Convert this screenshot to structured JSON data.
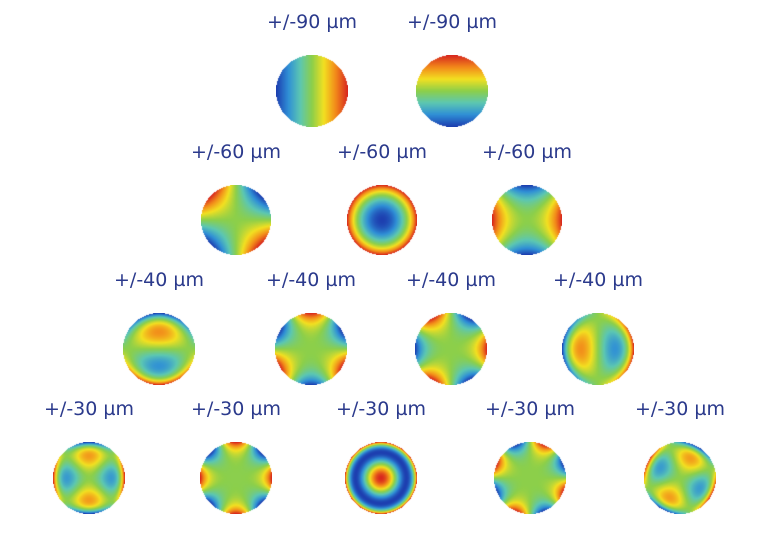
{
  "pyramid": {
    "rows": [
      {
        "range": "±90 µm",
        "modes": [
          {
            "label": "+/-90 µm",
            "pattern": "tilt-x"
          },
          {
            "label": "+/-90 µm",
            "pattern": "tilt-y"
          }
        ]
      },
      {
        "range": "±60 µm",
        "modes": [
          {
            "label": "+/-60 µm",
            "pattern": "astig-45"
          },
          {
            "label": "+/-60 µm",
            "pattern": "defocus"
          },
          {
            "label": "+/-60 µm",
            "pattern": "astig-0"
          }
        ]
      },
      {
        "range": "±40 µm",
        "modes": [
          {
            "label": "+/-40 µm",
            "pattern": "coma-y"
          },
          {
            "label": "+/-40 µm",
            "pattern": "trefoil-a"
          },
          {
            "label": "+/-40 µm",
            "pattern": "trefoil-b"
          },
          {
            "label": "+/-40 µm",
            "pattern": "coma-x"
          }
        ]
      },
      {
        "range": "±30 µm",
        "modes": [
          {
            "label": "+/-30 µm",
            "pattern": "2nd-astig-a"
          },
          {
            "label": "+/-30 µm",
            "pattern": "quadrafoil-a"
          },
          {
            "label": "+/-30 µm",
            "pattern": "spherical"
          },
          {
            "label": "+/-30 µm",
            "pattern": "quadrafoil-b"
          },
          {
            "label": "+/-30 µm",
            "pattern": "2nd-astig-b"
          }
        ]
      }
    ]
  },
  "colormap": [
    "#1d3fb0",
    "#2f8fd6",
    "#5cc7b2",
    "#8ccf4a",
    "#f2e021",
    "#f28a1a",
    "#d8281e"
  ]
}
